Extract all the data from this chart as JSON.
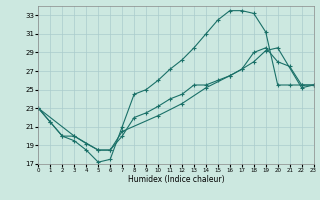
{
  "title": "",
  "xlabel": "Humidex (Indice chaleur)",
  "background_color": "#cce8e0",
  "grid_color": "#aacccc",
  "line_color": "#1a7068",
  "xlim": [
    0,
    23
  ],
  "ylim": [
    17,
    34
  ],
  "xticks": [
    0,
    1,
    2,
    3,
    4,
    5,
    6,
    7,
    8,
    9,
    10,
    11,
    12,
    13,
    14,
    15,
    16,
    17,
    18,
    19,
    20,
    21,
    22,
    23
  ],
  "yticks": [
    17,
    19,
    21,
    23,
    25,
    27,
    29,
    31,
    33
  ],
  "line1_x": [
    0,
    1,
    2,
    3,
    4,
    5,
    6,
    7,
    8,
    9,
    10,
    11,
    12,
    13,
    14,
    15,
    16,
    17,
    18,
    19,
    20,
    21,
    22,
    23
  ],
  "line1_y": [
    23.0,
    21.5,
    20.0,
    19.5,
    18.5,
    17.2,
    17.5,
    21.0,
    24.5,
    25.0,
    26.0,
    27.2,
    28.2,
    29.5,
    31.0,
    32.5,
    33.5,
    33.5,
    33.2,
    31.2,
    25.5,
    25.5,
    25.5,
    25.5
  ],
  "line2_x": [
    0,
    1,
    2,
    3,
    4,
    5,
    6,
    7,
    8,
    9,
    10,
    11,
    12,
    13,
    14,
    15,
    16,
    17,
    18,
    19,
    20,
    21,
    22,
    23
  ],
  "line2_y": [
    23.0,
    21.5,
    20.0,
    20.0,
    19.2,
    18.5,
    18.5,
    20.0,
    22.0,
    22.5,
    23.2,
    24.0,
    24.5,
    25.5,
    25.5,
    26.0,
    26.5,
    27.2,
    29.0,
    29.5,
    28.0,
    27.5,
    25.5,
    25.5
  ],
  "line3_x": [
    0,
    3,
    5,
    6,
    7,
    10,
    12,
    14,
    16,
    17,
    18,
    19,
    20,
    22,
    23
  ],
  "line3_y": [
    23.0,
    20.0,
    18.5,
    18.5,
    20.5,
    22.2,
    23.5,
    25.2,
    26.5,
    27.2,
    28.0,
    29.2,
    29.5,
    25.2,
    25.5
  ]
}
